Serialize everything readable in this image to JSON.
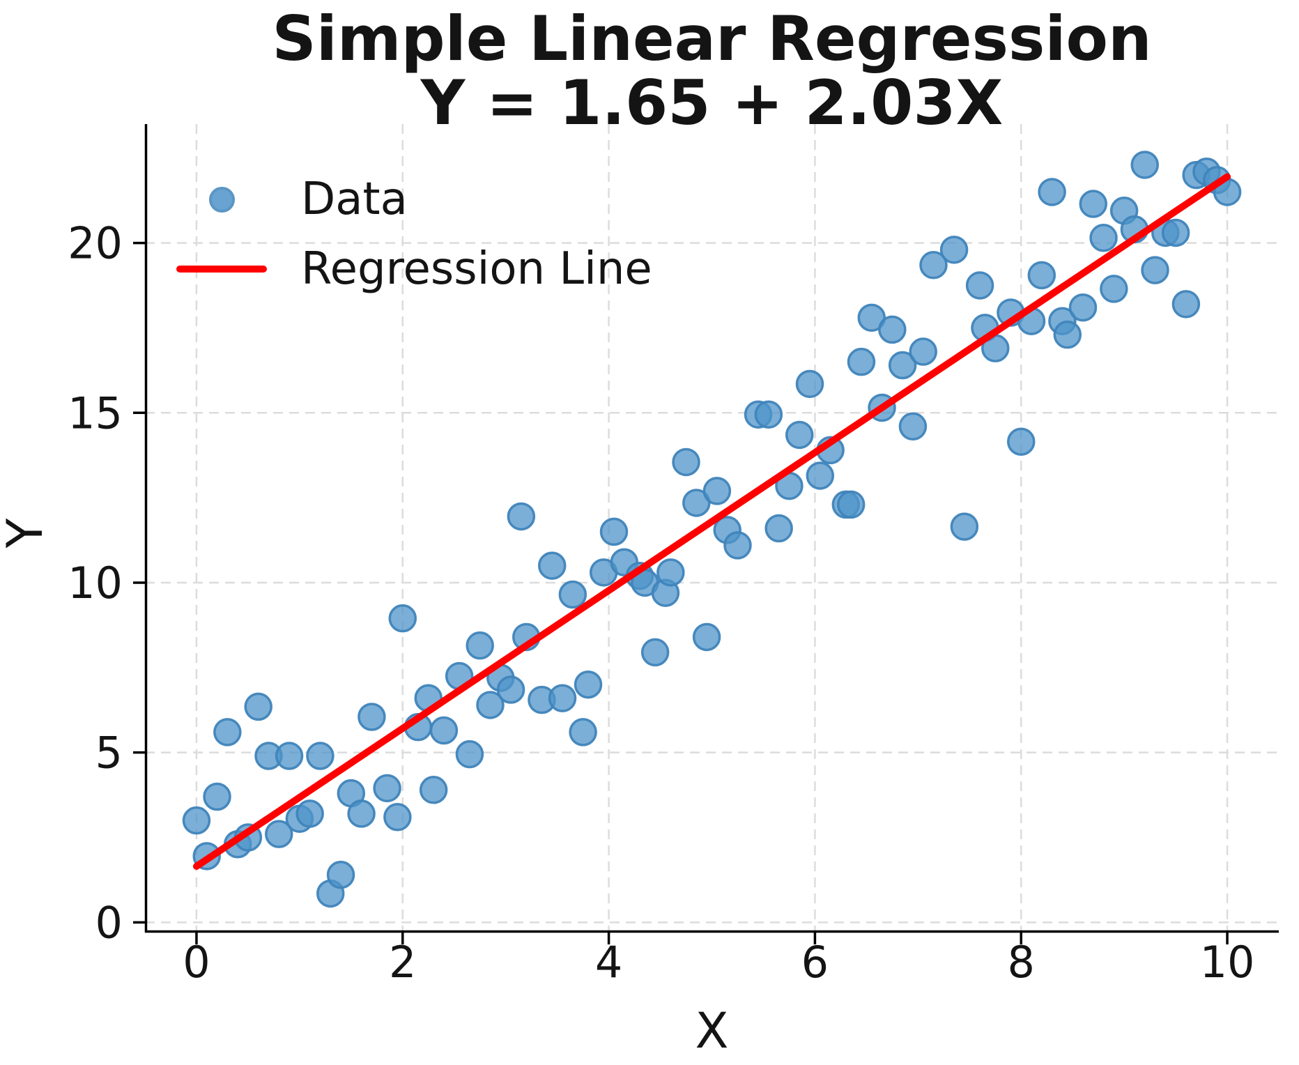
{
  "title": {
    "line1": "Simple Linear Regression",
    "line2": "Y = 1.65 + 2.03X"
  },
  "legend": {
    "data_label": "Data",
    "line_label": "Regression Line"
  },
  "colors": {
    "point_fill": "#4f94c9",
    "point_edge": "#3f84ba",
    "point_alpha": 0.75,
    "regression_line": "#ff0000",
    "grid": "#dcdcdc",
    "axis": "#000000",
    "text": "#141414",
    "background": "#ffffff"
  },
  "chart_data": {
    "type": "scatter",
    "title": "Simple Linear Regression",
    "subtitle": "Y = 1.65 + 2.03X",
    "xlabel": "X",
    "ylabel": "Y",
    "xlim": [
      -0.5,
      10.5
    ],
    "ylim": [
      -0.3,
      23.5
    ],
    "xticks": [
      0,
      2,
      4,
      6,
      8,
      10
    ],
    "yticks": [
      0,
      5,
      10,
      15,
      20
    ],
    "grid": true,
    "grid_style": "dashed",
    "legend_position": "upper left",
    "series": [
      {
        "name": "Data",
        "type": "scatter",
        "points": [
          [
            0.0,
            3.0
          ],
          [
            0.1,
            1.95
          ],
          [
            0.2,
            3.7
          ],
          [
            0.3,
            5.6
          ],
          [
            0.4,
            2.3
          ],
          [
            0.5,
            2.5
          ],
          [
            0.6,
            6.35
          ],
          [
            0.7,
            4.9
          ],
          [
            0.8,
            2.6
          ],
          [
            0.9,
            4.9
          ],
          [
            1.0,
            3.05
          ],
          [
            1.1,
            3.2
          ],
          [
            1.2,
            4.9
          ],
          [
            1.3,
            0.85
          ],
          [
            1.4,
            1.4
          ],
          [
            1.5,
            3.8
          ],
          [
            1.6,
            3.2
          ],
          [
            1.7,
            6.05
          ],
          [
            1.85,
            3.95
          ],
          [
            1.95,
            3.1
          ],
          [
            2.0,
            8.95
          ],
          [
            2.15,
            5.75
          ],
          [
            2.25,
            6.6
          ],
          [
            2.3,
            3.9
          ],
          [
            2.4,
            5.65
          ],
          [
            2.55,
            7.25
          ],
          [
            2.65,
            4.95
          ],
          [
            2.75,
            8.15
          ],
          [
            2.85,
            6.4
          ],
          [
            2.95,
            7.2
          ],
          [
            3.05,
            6.85
          ],
          [
            3.15,
            11.95
          ],
          [
            3.2,
            8.4
          ],
          [
            3.35,
            6.55
          ],
          [
            3.45,
            10.5
          ],
          [
            3.55,
            6.6
          ],
          [
            3.65,
            9.65
          ],
          [
            3.75,
            5.6
          ],
          [
            3.8,
            7.0
          ],
          [
            3.95,
            10.3
          ],
          [
            4.05,
            11.5
          ],
          [
            4.15,
            10.6
          ],
          [
            4.3,
            10.2
          ],
          [
            4.35,
            10.0
          ],
          [
            4.45,
            7.95
          ],
          [
            4.55,
            9.7
          ],
          [
            4.6,
            10.3
          ],
          [
            4.75,
            13.55
          ],
          [
            4.85,
            12.35
          ],
          [
            4.95,
            8.4
          ],
          [
            5.05,
            12.7
          ],
          [
            5.15,
            11.55
          ],
          [
            5.25,
            11.1
          ],
          [
            5.45,
            14.95
          ],
          [
            5.55,
            14.95
          ],
          [
            5.65,
            11.6
          ],
          [
            5.75,
            12.85
          ],
          [
            5.85,
            14.35
          ],
          [
            5.95,
            15.85
          ],
          [
            6.05,
            13.15
          ],
          [
            6.15,
            13.9
          ],
          [
            6.3,
            12.3
          ],
          [
            6.35,
            12.3
          ],
          [
            6.45,
            16.5
          ],
          [
            6.55,
            17.8
          ],
          [
            6.65,
            15.15
          ],
          [
            6.75,
            17.45
          ],
          [
            6.85,
            16.4
          ],
          [
            6.95,
            14.6
          ],
          [
            7.05,
            16.8
          ],
          [
            7.15,
            19.35
          ],
          [
            7.45,
            11.65
          ],
          [
            7.35,
            19.8
          ],
          [
            7.6,
            18.75
          ],
          [
            7.65,
            17.5
          ],
          [
            7.75,
            16.9
          ],
          [
            7.9,
            17.95
          ],
          [
            8.0,
            14.15
          ],
          [
            8.1,
            17.7
          ],
          [
            8.2,
            19.05
          ],
          [
            8.3,
            21.5
          ],
          [
            8.4,
            17.7
          ],
          [
            8.45,
            17.3
          ],
          [
            8.6,
            18.1
          ],
          [
            8.7,
            21.15
          ],
          [
            8.8,
            20.15
          ],
          [
            8.9,
            18.65
          ],
          [
            9.0,
            20.95
          ],
          [
            9.1,
            20.4
          ],
          [
            9.2,
            22.3
          ],
          [
            9.3,
            19.2
          ],
          [
            9.4,
            20.3
          ],
          [
            9.5,
            20.3
          ],
          [
            9.6,
            18.2
          ],
          [
            9.7,
            22.0
          ],
          [
            9.8,
            22.1
          ],
          [
            9.9,
            21.85
          ],
          [
            10.0,
            21.5
          ]
        ]
      },
      {
        "name": "Regression Line",
        "type": "line",
        "equation": "Y = 1.65 + 2.03X",
        "intercept": 1.65,
        "slope": 2.03,
        "x_range": [
          0,
          10
        ]
      }
    ]
  }
}
